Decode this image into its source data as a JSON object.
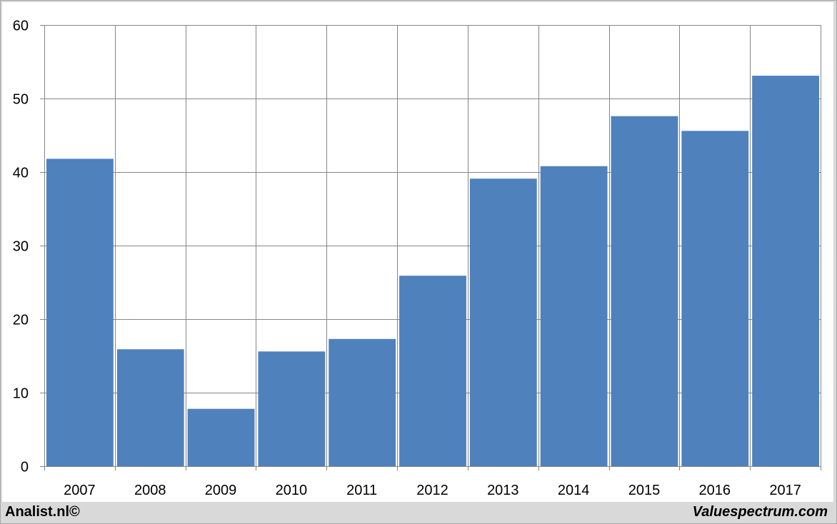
{
  "chart_data": {
    "type": "bar",
    "categories": [
      "2007",
      "2008",
      "2009",
      "2010",
      "2011",
      "2012",
      "2013",
      "2014",
      "2015",
      "2016",
      "2017"
    ],
    "values": [
      41.8,
      15.9,
      7.8,
      15.6,
      17.3,
      25.9,
      39.1,
      40.8,
      47.6,
      45.6,
      53.1
    ],
    "ylim": [
      0,
      60
    ],
    "yticks": [
      0,
      10,
      20,
      30,
      40,
      50,
      60
    ],
    "grid": true,
    "bar_color": "#4f81bd"
  },
  "footer": {
    "left": "Analist.nl©",
    "right": "Valuespectrum.com"
  }
}
